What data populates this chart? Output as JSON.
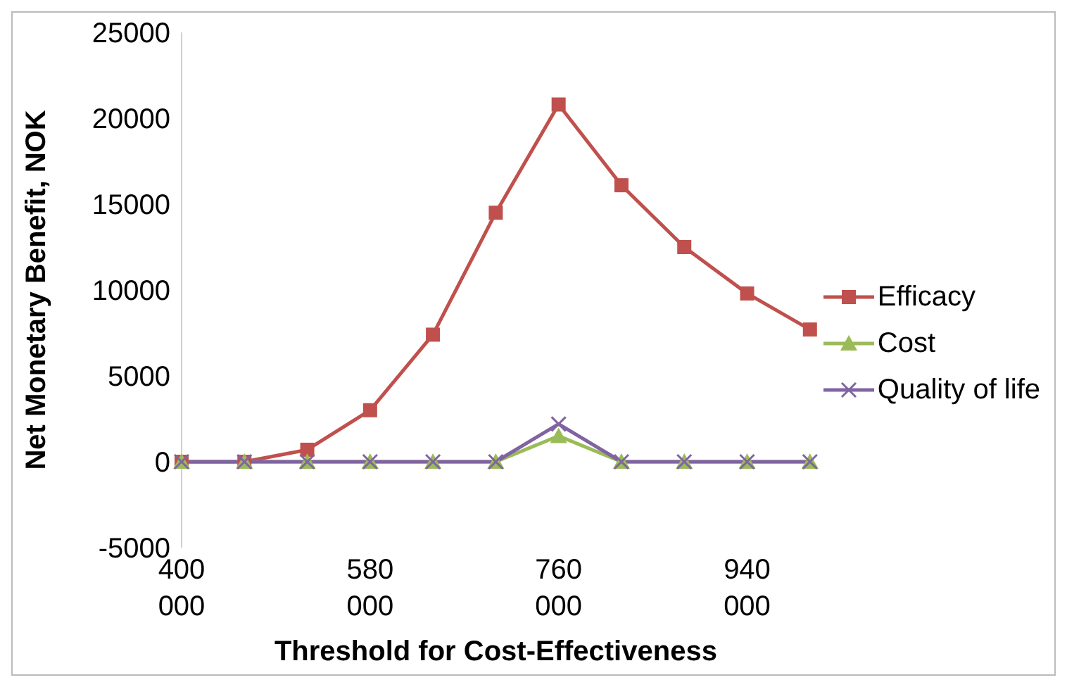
{
  "chart_data": {
    "type": "line",
    "xlabel": "Threshold for Cost-Effectiveness",
    "ylabel": "Net Monetary Benefit, NOK",
    "categories": [
      "400 000",
      null,
      null,
      "580 000",
      null,
      null,
      "760 000",
      null,
      null,
      "940 000",
      null
    ],
    "series": [
      {
        "name": "Efficacy",
        "color": "#c0504d",
        "marker": "square",
        "values": [
          0,
          0,
          700,
          3000,
          7400,
          14500,
          20800,
          16100,
          12500,
          9800,
          7700
        ]
      },
      {
        "name": "Cost",
        "color": "#9bbb59",
        "marker": "triangle",
        "values": [
          0,
          0,
          0,
          0,
          0,
          0,
          1500,
          0,
          0,
          0,
          0
        ]
      },
      {
        "name": "Quality of life",
        "color": "#8064a2",
        "marker": "cross",
        "values": [
          0,
          0,
          0,
          0,
          0,
          0,
          2200,
          0,
          0,
          0,
          0
        ]
      }
    ],
    "ylim": [
      -5000,
      25000
    ],
    "yticks": [
      -5000,
      0,
      5000,
      10000,
      15000,
      20000,
      25000
    ],
    "grid": false,
    "legend": "right",
    "line_style": "solid"
  }
}
